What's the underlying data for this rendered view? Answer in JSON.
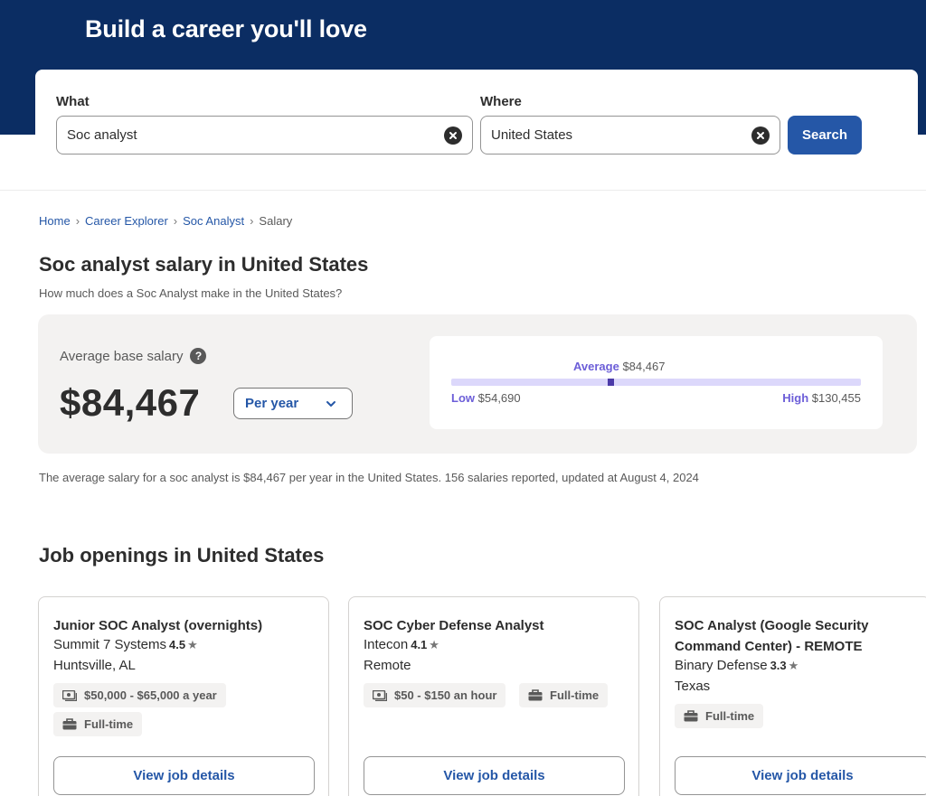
{
  "hero": {
    "title": "Build a career you'll love"
  },
  "search": {
    "what_label": "What",
    "what_value": "Soc analyst",
    "where_label": "Where",
    "where_value": "United States",
    "button_label": "Search"
  },
  "breadcrumb": {
    "items": [
      "Home",
      "Career Explorer",
      "Soc Analyst"
    ],
    "current": "Salary",
    "separator": "›"
  },
  "page": {
    "title": "Soc analyst salary in United States",
    "subtitle": "How much does a Soc Analyst make in the United States?"
  },
  "salary": {
    "avg_label": "Average base salary",
    "help_glyph": "?",
    "amount": "$84,467",
    "period": "Per year",
    "range": {
      "average_key": "Average",
      "average_value": "$84,467",
      "low_key": "Low",
      "low_value": "$54,690",
      "high_key": "High",
      "high_value": "$130,455",
      "average_position_fraction": 0.39
    }
  },
  "summary": {
    "text": "The average salary for a soc analyst is $84,467 per year in the United States.  156 salaries reported, updated at August 4, 2024"
  },
  "jobs": {
    "heading": "Job openings in United States",
    "view_label": "View job details",
    "star_glyph": "★",
    "cards": [
      {
        "title": "Junior SOC Analyst (overnights)",
        "company": "Summit 7 Systems",
        "rating": "4.5",
        "location": "Huntsville, AL",
        "pay": "$50,000 - $65,000 a year",
        "type": "Full-time"
      },
      {
        "title": "SOC Cyber Defense Analyst",
        "company": "Intecon",
        "rating": "4.1",
        "location": "Remote",
        "pay": "$50 - $150 an hour",
        "type": "Full-time"
      },
      {
        "title": "SOC Analyst (Google Security Command Center) - REMOTE",
        "company": "Binary Defense",
        "rating": "3.3",
        "location": "Texas",
        "type": "Full-time"
      }
    ]
  },
  "colors": {
    "brand_navy": "#0b2d63",
    "link_blue": "#2557a7",
    "accent_purple": "#6c5ed8",
    "range_fill": "#dcd8fb"
  }
}
